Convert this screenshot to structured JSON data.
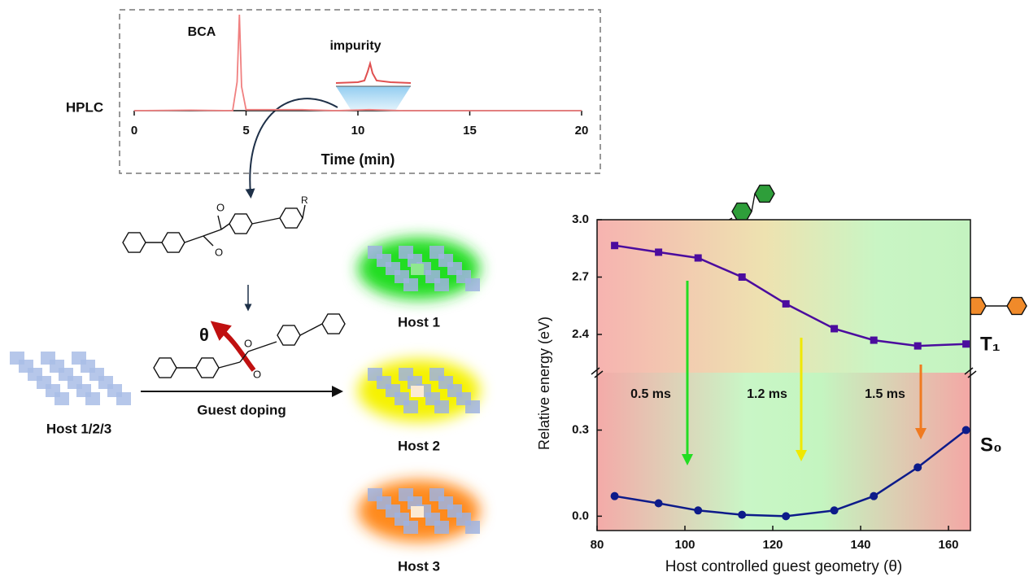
{
  "chart_data": [
    {
      "type": "line",
      "y_label": "HPLC",
      "x_label": "Time (min)",
      "annotations": [
        "BCA",
        "impurity"
      ],
      "x": [
        0,
        2.5,
        4.4,
        4.6,
        4.7,
        4.8,
        5.0,
        7.5,
        9,
        10.5,
        12,
        20
      ],
      "series": [
        {
          "color": "#f08080",
          "values": [
            0,
            0.5,
            0,
            30,
            100,
            25,
            1,
            1,
            0,
            1,
            0,
            0
          ]
        }
      ],
      "xlim": [
        0,
        20
      ],
      "xticks": [
        0,
        5,
        10,
        15,
        20
      ],
      "ylim": [
        0,
        100
      ]
    },
    {
      "type": "line",
      "y_label": "Relative energy (eV)",
      "x_label": "Host controlled guest geometry (θ)",
      "annotations": [
        "0.5 ms",
        "1.2 ms",
        "1.5 ms"
      ],
      "x": [
        84,
        94,
        103,
        113,
        123,
        134,
        143,
        153,
        164
      ],
      "series": [
        {
          "name": "T₁",
          "color": "#4b0c9e",
          "marker": "square",
          "values": [
            2.865,
            2.83,
            2.8,
            2.7,
            2.56,
            2.43,
            2.37,
            2.34,
            2.35
          ]
        },
        {
          "name": "S₀",
          "color": "#0d1b8a",
          "marker": "circle",
          "axis": "y2",
          "values": [
            0.07,
            0.045,
            0.02,
            0.005,
            0,
            0.02,
            0.07,
            0.17,
            0.3
          ]
        }
      ],
      "xlim": [
        80,
        165
      ],
      "xticks": [
        80,
        100,
        120,
        140,
        160
      ],
      "ylim": [
        2.2,
        3.0
      ],
      "yticks": [
        2.4,
        2.7,
        {
          "value": 3,
          "label": "3.0"
        }
      ],
      "y2lim": [
        -0.05,
        0.5
      ],
      "y2ticks": [
        {
          "value": 0,
          "label": "0.0"
        },
        {
          "value": 0.3,
          "label": "0.3"
        }
      ]
    }
  ],
  "diagram": {
    "host_mix": "Host 1/2/3",
    "doping": "Guest doping",
    "hosts": [
      "Host 1",
      "Host 2",
      "Host 3"
    ],
    "angle": "θ",
    "substituent": "R",
    "oxygen": "O"
  }
}
